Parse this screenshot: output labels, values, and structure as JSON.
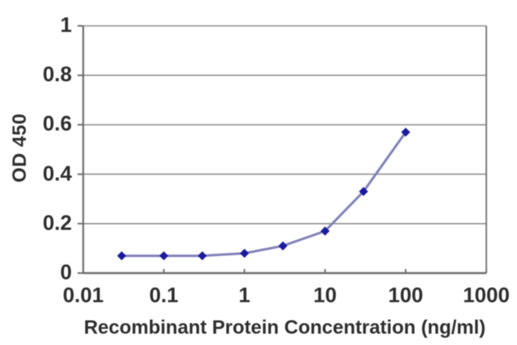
{
  "figure": {
    "background": "#ffffff",
    "text_color": "#2e2e2e"
  },
  "chart_data": {
    "type": "line",
    "title": "",
    "xlabel": "Recombinant Protein Concentration (ng/ml)",
    "ylabel": "OD 450",
    "x_scale": "log",
    "xlim": [
      0.01,
      1000
    ],
    "ylim": [
      0,
      1
    ],
    "grid": "horizontal",
    "grid_color": "#8f8f8f",
    "axis_color": "#6e6e6e",
    "legend": "none",
    "x_tick_labels": [
      "0.01",
      "0.1",
      "1",
      "10",
      "100",
      "1000"
    ],
    "x_tick_values": [
      0.01,
      0.1,
      1,
      10,
      100,
      1000
    ],
    "y_tick_labels": [
      "1",
      "0.8",
      "0.6",
      "0.4",
      "0.2",
      "0"
    ],
    "y_tick_values": [
      1,
      0.8,
      0.6,
      0.4,
      0.2,
      0
    ],
    "series": [
      {
        "name": "OD 450",
        "marker": "diamond",
        "line_color": "#8181ba",
        "marker_color": "#1b1b9e",
        "x": [
          0.03,
          0.1,
          0.3,
          1,
          3,
          10,
          30,
          100
        ],
        "y": [
          0.07,
          0.07,
          0.07,
          0.08,
          0.11,
          0.17,
          0.33,
          0.57
        ]
      }
    ]
  }
}
